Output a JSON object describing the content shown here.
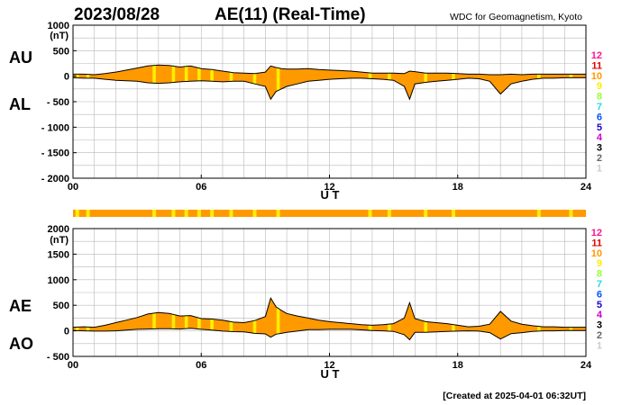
{
  "header": {
    "date": "2023/08/28",
    "title": "AE(11) (Real-Time)",
    "source": "WDC for Geomagnetism, Kyoto"
  },
  "footer": {
    "created": "[Created at 2025-04-01 06:32UT]"
  },
  "stations": {
    "labels": [
      "12",
      "11",
      "10",
      "9",
      "8",
      "7",
      "6",
      "5",
      "4",
      "3",
      "2",
      "1"
    ],
    "colors": [
      "#ff1493",
      "#e00000",
      "#ff9900",
      "#ffee00",
      "#99ff33",
      "#22dddd",
      "#0055ff",
      "#2200cc",
      "#cc00cc",
      "#000000",
      "#666666",
      "#cccccc"
    ]
  },
  "chart_data": [
    {
      "type": "area",
      "name": "AU/AL",
      "series_labels": {
        "upper": "AU",
        "lower": "AL"
      },
      "xlabel": "U T",
      "x_ticks": [
        "00",
        "06",
        "12",
        "18",
        "24"
      ],
      "ylim": [
        -2000,
        1000
      ],
      "y_ticks": [
        1000,
        500,
        0,
        -500,
        -1000,
        -1500,
        -2000
      ],
      "y_tick_labels": [
        "1000",
        "500",
        "0",
        "- 500",
        "- 1000",
        "- 1500",
        "- 2000"
      ],
      "unit": "(nT)",
      "grid": true,
      "hours": [
        0,
        0.5,
        1,
        1.5,
        2,
        2.5,
        3,
        3.5,
        4,
        4.5,
        5,
        5.5,
        6,
        6.5,
        7,
        7.5,
        8,
        8.5,
        9,
        9.25,
        9.5,
        9.75,
        10,
        10.5,
        11,
        11.5,
        12,
        12.5,
        13,
        13.5,
        14,
        14.5,
        15,
        15.5,
        15.75,
        16,
        16.5,
        17,
        17.5,
        18,
        18.5,
        19,
        19.5,
        20,
        20.5,
        21,
        21.5,
        22,
        22.5,
        23,
        23.5,
        24
      ],
      "upper": [
        40,
        40,
        30,
        50,
        80,
        120,
        160,
        200,
        220,
        210,
        180,
        200,
        150,
        130,
        100,
        70,
        60,
        50,
        80,
        200,
        170,
        150,
        140,
        140,
        150,
        130,
        120,
        110,
        100,
        80,
        60,
        60,
        60,
        50,
        100,
        90,
        60,
        60,
        60,
        50,
        40,
        40,
        30,
        30,
        40,
        30,
        40,
        40,
        40,
        40,
        40,
        40
      ],
      "lower": [
        -30,
        -40,
        -40,
        -60,
        -80,
        -90,
        -100,
        -130,
        -140,
        -130,
        -110,
        -100,
        -90,
        -100,
        -110,
        -100,
        -100,
        -150,
        -200,
        -450,
        -300,
        -250,
        -200,
        -150,
        -100,
        -80,
        -60,
        -50,
        -40,
        -40,
        -50,
        -60,
        -80,
        -200,
        -450,
        -150,
        -120,
        -100,
        -80,
        -60,
        -40,
        -50,
        -100,
        -350,
        -150,
        -100,
        -60,
        -40,
        -40,
        -30,
        -30,
        -30
      ]
    },
    {
      "type": "area",
      "name": "AE/AO",
      "series_labels": {
        "upper": "AE",
        "lower": "AO"
      },
      "xlabel": "U T",
      "x_ticks": [
        "00",
        "06",
        "12",
        "18",
        "24"
      ],
      "ylim": [
        -500,
        2000
      ],
      "y_ticks": [
        2000,
        1500,
        1000,
        500,
        0,
        -500
      ],
      "y_tick_labels": [
        "2000",
        "1500",
        "1000",
        "500",
        "0",
        "- 500"
      ],
      "unit": "(nT)",
      "grid": true,
      "hours": [
        0,
        0.5,
        1,
        1.5,
        2,
        2.5,
        3,
        3.5,
        4,
        4.5,
        5,
        5.5,
        6,
        6.5,
        7,
        7.5,
        8,
        8.5,
        9,
        9.25,
        9.5,
        9.75,
        10,
        10.5,
        11,
        11.5,
        12,
        12.5,
        13,
        13.5,
        14,
        14.5,
        15,
        15.5,
        15.75,
        16,
        16.5,
        17,
        17.5,
        18,
        18.5,
        19,
        19.5,
        20,
        20.5,
        21,
        21.5,
        22,
        22.5,
        23,
        23.5,
        24
      ],
      "upper": [
        70,
        80,
        70,
        110,
        160,
        210,
        260,
        330,
        360,
        340,
        290,
        300,
        240,
        230,
        210,
        170,
        160,
        200,
        280,
        640,
        470,
        400,
        340,
        290,
        250,
        210,
        180,
        160,
        140,
        120,
        110,
        120,
        140,
        250,
        550,
        240,
        180,
        160,
        140,
        110,
        80,
        90,
        130,
        380,
        190,
        130,
        100,
        80,
        80,
        70,
        70,
        70
      ],
      "lower": [
        5,
        0,
        -5,
        -5,
        0,
        15,
        30,
        35,
        40,
        40,
        35,
        50,
        30,
        15,
        -5,
        -15,
        -20,
        -50,
        -60,
        -125,
        -65,
        -50,
        -30,
        -5,
        25,
        25,
        30,
        30,
        30,
        20,
        5,
        0,
        -10,
        -75,
        -175,
        -30,
        -30,
        -20,
        -10,
        -5,
        0,
        -5,
        -35,
        -160,
        -55,
        -35,
        -10,
        0,
        0,
        5,
        5,
        5
      ]
    }
  ],
  "station_count_bar": {
    "highlight_hours": [
      0.2,
      0.7,
      3.8,
      4.7,
      5.3,
      5.9,
      6.5,
      7.4,
      8.5,
      9.6,
      13.9,
      14.8,
      16.5,
      17.8,
      21.8,
      23.3
    ]
  }
}
